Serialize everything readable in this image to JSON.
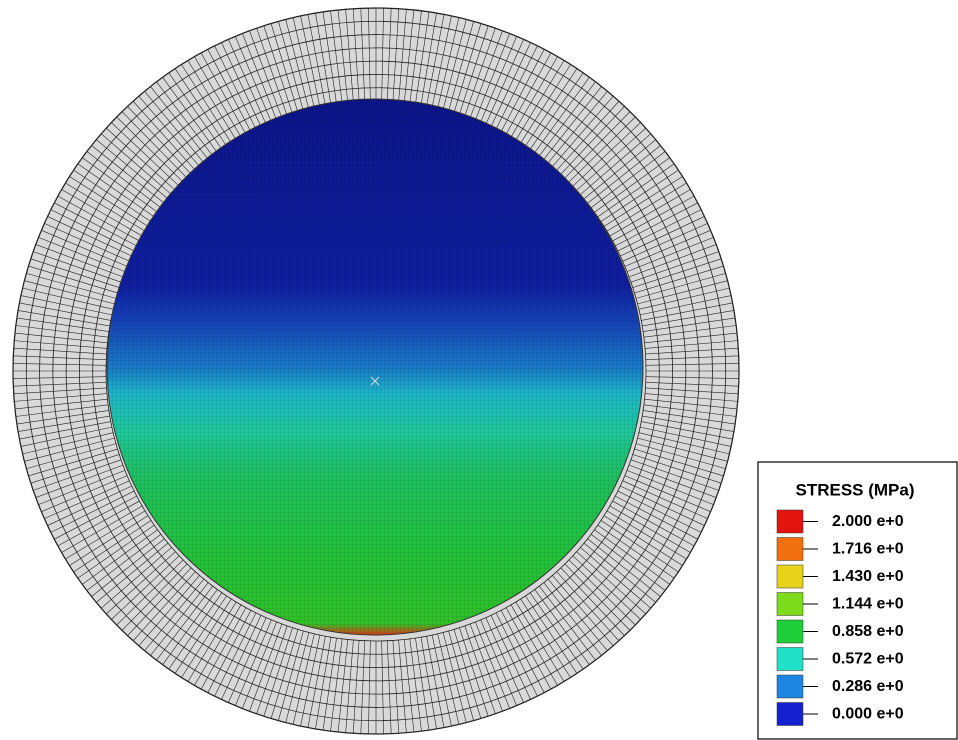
{
  "legend": {
    "title": "STRESS (MPa)",
    "items": [
      {
        "label": "2.000 e+0",
        "color": "#e3130e"
      },
      {
        "label": "1.716 e+0",
        "color": "#f2700f"
      },
      {
        "label": "1.430 e+0",
        "color": "#e6d21a"
      },
      {
        "label": "1.144 e+0",
        "color": "#7cdc1c"
      },
      {
        "label": "0.858 e+0",
        "color": "#1fcf3a"
      },
      {
        "label": "0.572 e+0",
        "color": "#20e0c8"
      },
      {
        "label": "0.286 e+0",
        "color": "#1c86e2"
      },
      {
        "label": "0.000 e+0",
        "color": "#1520d0"
      }
    ]
  }
}
